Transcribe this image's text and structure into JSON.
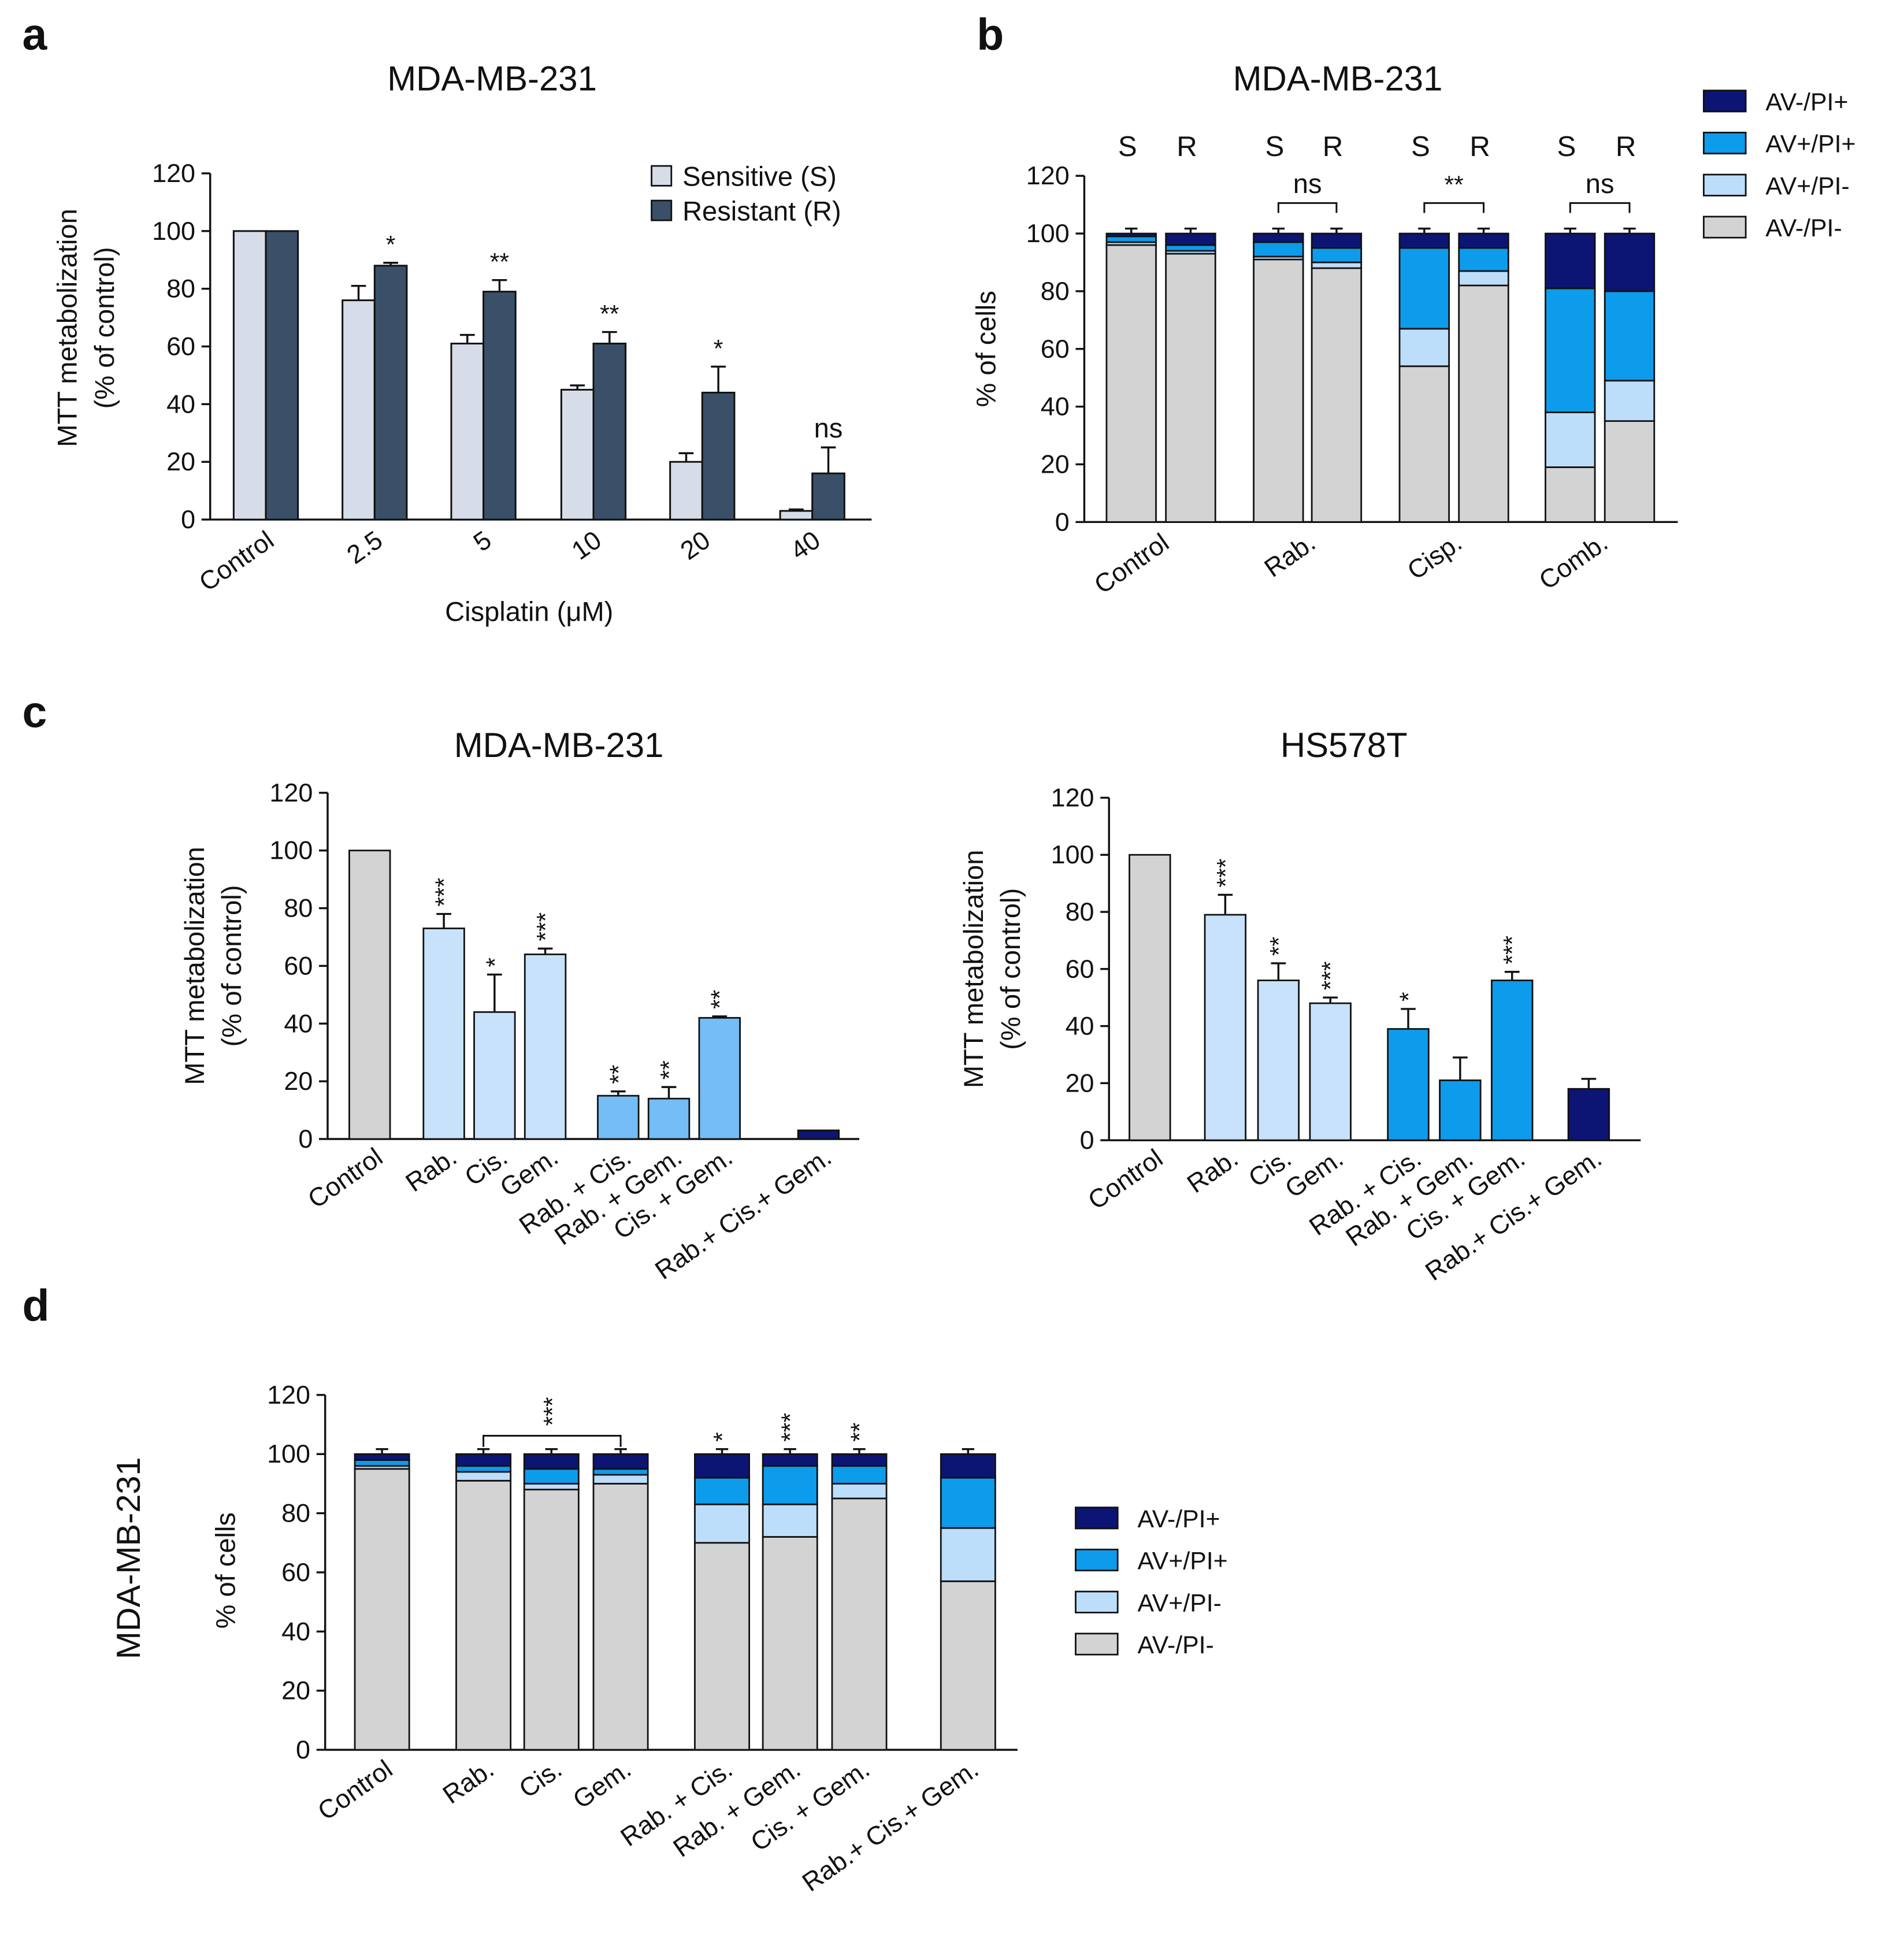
{
  "colors": {
    "light_gray": "#d3d3d3",
    "pale_blue_gray": "#d6dde8",
    "dark_slate": "#3a5068",
    "very_light_blue": "#c7e2fa",
    "mid_blue": "#74bdf6",
    "bright_blue": "#0d9bec",
    "navy": "#0c1574",
    "light_blue": "#bddefa"
  },
  "chart_data": [
    {
      "panel": "a",
      "type": "bar",
      "title": "MDA-MB-231",
      "xlabel": "Cisplatin (μM)",
      "ylabel": [
        "MTT metabolization",
        "(% of control)"
      ],
      "ylim": [
        0,
        120
      ],
      "yticks": [
        "0",
        "20",
        "40",
        "60",
        "80",
        "100",
        "120"
      ],
      "categories": [
        "Control",
        "2.5",
        "5",
        "10",
        "20",
        "40"
      ],
      "series": [
        {
          "name": "Sensitive (S)",
          "values": [
            100,
            76,
            61,
            45,
            20,
            3
          ],
          "errors": [
            0,
            5,
            3,
            1.5,
            3,
            0.5
          ]
        },
        {
          "name": "Resistant (R)",
          "values": [
            100,
            88,
            79,
            61,
            44,
            16
          ],
          "errors": [
            0,
            1,
            4,
            4,
            9,
            9
          ]
        }
      ],
      "significance": [
        "",
        "*",
        "**",
        "**",
        "*",
        "ns"
      ],
      "legend_position": "top-right"
    },
    {
      "panel": "b",
      "type": "stacked-bar",
      "title": "MDA-MB-231",
      "ylabel": "% of cells",
      "ylim": [
        0,
        120
      ],
      "yticks": [
        "0",
        "20",
        "40",
        "60",
        "80",
        "100",
        "120"
      ],
      "groups": [
        "Control",
        "Rab.",
        "Cisp.",
        "Comb."
      ],
      "bar_labels": [
        "S",
        "R"
      ],
      "legend": [
        "AV-/PI+",
        "AV+/PI+",
        "AV+/PI-",
        "AV-/PI-"
      ],
      "legend_position": "top-right",
      "bars": [
        {
          "group": "Control",
          "label": "S",
          "stack": [
            96,
            1,
            2,
            1
          ]
        },
        {
          "group": "Control",
          "label": "R",
          "stack": [
            93,
            1,
            2,
            4
          ]
        },
        {
          "group": "Rab.",
          "label": "S",
          "stack": [
            91,
            1,
            5,
            3
          ]
        },
        {
          "group": "Rab.",
          "label": "R",
          "stack": [
            88,
            2,
            5,
            5
          ]
        },
        {
          "group": "Cisp.",
          "label": "S",
          "stack": [
            54,
            13,
            28,
            5
          ]
        },
        {
          "group": "Cisp.",
          "label": "R",
          "stack": [
            82,
            5,
            8,
            5
          ]
        },
        {
          "group": "Comb.",
          "label": "S",
          "stack": [
            19,
            19,
            43,
            19
          ]
        },
        {
          "group": "Comb.",
          "label": "R",
          "stack": [
            35,
            14,
            31,
            20
          ]
        }
      ],
      "stack_order": [
        "AV-/PI-",
        "AV+/PI-",
        "AV+/PI+",
        "AV-/PI+"
      ],
      "comparisons": [
        {
          "group": "Rab.",
          "label": "ns"
        },
        {
          "group": "Cisp.",
          "label": "**"
        },
        {
          "group": "Comb.",
          "label": "ns"
        }
      ]
    },
    {
      "panel": "c",
      "type": "bar",
      "title": "MDA-MB-231",
      "ylabel": [
        "MTT metabolization",
        "(% of control)"
      ],
      "ylim": [
        0,
        120
      ],
      "yticks": [
        "0",
        "20",
        "40",
        "60",
        "80",
        "100",
        "120"
      ],
      "categories": [
        "Control",
        "Rab.",
        "Cis.",
        "Gem.",
        "Rab. + Cis.",
        "Rab. + Gem.",
        "Cis. + Gem.",
        "Rab.+ Cis.+ Gem."
      ],
      "values": [
        100,
        73,
        44,
        64,
        15,
        14,
        42,
        3
      ],
      "errors": [
        0,
        5,
        13,
        2,
        1.5,
        4,
        0.5,
        0
      ],
      "significance": [
        "",
        "***",
        "*",
        "***",
        "**",
        "**",
        "**",
        ""
      ]
    },
    {
      "panel": "c",
      "type": "bar",
      "title": "HS578T",
      "ylabel": [
        "MTT metabolization",
        "(% of control)"
      ],
      "ylim": [
        0,
        120
      ],
      "yticks": [
        "0",
        "20",
        "40",
        "60",
        "80",
        "100",
        "120"
      ],
      "categories": [
        "Control",
        "Rab.",
        "Cis.",
        "Gem.",
        "Rab. + Cis.",
        "Rab. + Gem.",
        "Cis. + Gem.",
        "Rab.+ Cis.+ Gem."
      ],
      "values": [
        100,
        79,
        56,
        48,
        39,
        21,
        56,
        18
      ],
      "errors": [
        0,
        7,
        6,
        2,
        7,
        8,
        3,
        3.5
      ],
      "significance": [
        "",
        "***",
        "**",
        "***",
        "*",
        "",
        "***",
        ""
      ]
    },
    {
      "panel": "d",
      "type": "stacked-bar",
      "ylabel": "% of cells",
      "side_label": "MDA-MB-231",
      "ylim": [
        0,
        120
      ],
      "yticks": [
        "0",
        "20",
        "40",
        "60",
        "80",
        "100",
        "120"
      ],
      "categories": [
        "Control",
        "Rab.",
        "Cis.",
        "Gem.",
        "Rab. + Cis.",
        "Rab. + Gem.",
        "Cis. + Gem.",
        "Rab.+ Cis.+ Gem."
      ],
      "legend": [
        "AV-/PI+",
        "AV+/PI+",
        "AV+/PI-",
        "AV-/PI-"
      ],
      "legend_position": "right",
      "stack_order": [
        "AV-/PI-",
        "AV+/PI-",
        "AV+/PI+",
        "AV-/PI+"
      ],
      "bars": [
        [
          95,
          1,
          2,
          2
        ],
        [
          91,
          3,
          2,
          4
        ],
        [
          88,
          2,
          5,
          5
        ],
        [
          90,
          3,
          2,
          5
        ],
        [
          70,
          13,
          9,
          8
        ],
        [
          72,
          11,
          13,
          4
        ],
        [
          85,
          5,
          6,
          4
        ],
        [
          57,
          18,
          17,
          8
        ]
      ],
      "significance": [
        "",
        "",
        "",
        "",
        "*",
        "***",
        "**",
        ""
      ],
      "comparisons": [
        {
          "from": "Rab.",
          "to": "Gem.",
          "label": "***"
        }
      ]
    }
  ],
  "panel_letters": [
    "a",
    "b",
    "c",
    "d"
  ]
}
